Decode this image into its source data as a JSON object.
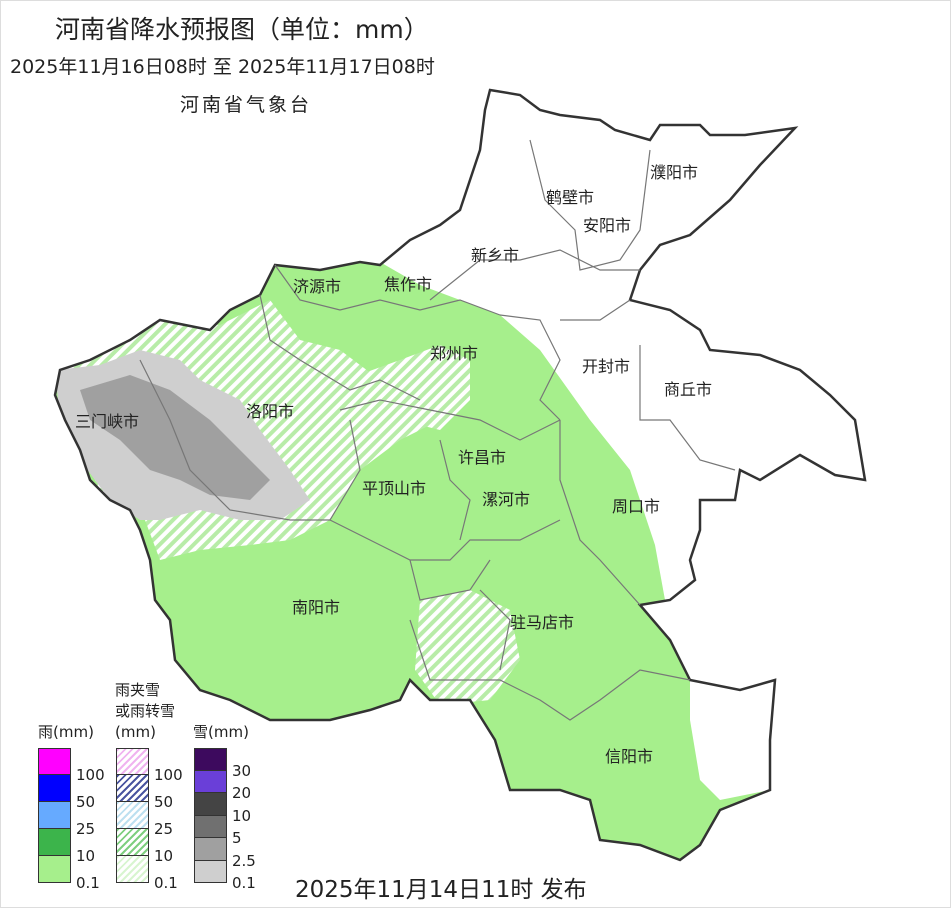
{
  "header": {
    "title": "河南省降水预报图（单位：mm）",
    "period": "2025年11月16日08时  至  2025年11月17日08时",
    "agency": "河南省气象台"
  },
  "footer": {
    "issued": "2025年11月14日11时 发布"
  },
  "cities": [
    "濮阳市",
    "鹤壁市",
    "安阳市",
    "新乡市",
    "济源市",
    "焦作市",
    "郑州市",
    "开封市",
    "商丘市",
    "三门峡市",
    "洛阳市",
    "许昌市",
    "平顶山市",
    "漯河市",
    "周口市",
    "南阳市",
    "驻马店市",
    "信阳市"
  ],
  "legend": {
    "rain": {
      "title": "雨(mm)",
      "colors": [
        "#ff00ff",
        "#0000ff",
        "#66aaff",
        "#3cb44b",
        "#a6ef8c"
      ],
      "labels": [
        "100",
        "50",
        "25",
        "10",
        "0.1"
      ]
    },
    "mixed": {
      "title_lines": [
        "雨夹雪",
        "或雨转雪",
        "(mm)"
      ],
      "colors": [
        "#f0b4f0",
        "#4a55a0",
        "#bde0f0",
        "#7fcf80",
        "#d8f5d0"
      ],
      "labels": [
        "100",
        "50",
        "25",
        "10",
        "0.1"
      ]
    },
    "snow": {
      "title": "雪(mm)",
      "colors": [
        "#3d0a5e",
        "#6a3fd8",
        "#444444",
        "#707070",
        "#a0a0a0",
        "#cfcfcf"
      ],
      "labels": [
        "30",
        "20",
        "10",
        "5",
        "2.5",
        "0.1"
      ]
    }
  },
  "colors": {
    "rain_light": "#a6ef8c",
    "snow_light": "#cfcfcf",
    "snow_mid": "#a0a0a0",
    "boundary": "#333333",
    "city_boundary": "#777777"
  }
}
